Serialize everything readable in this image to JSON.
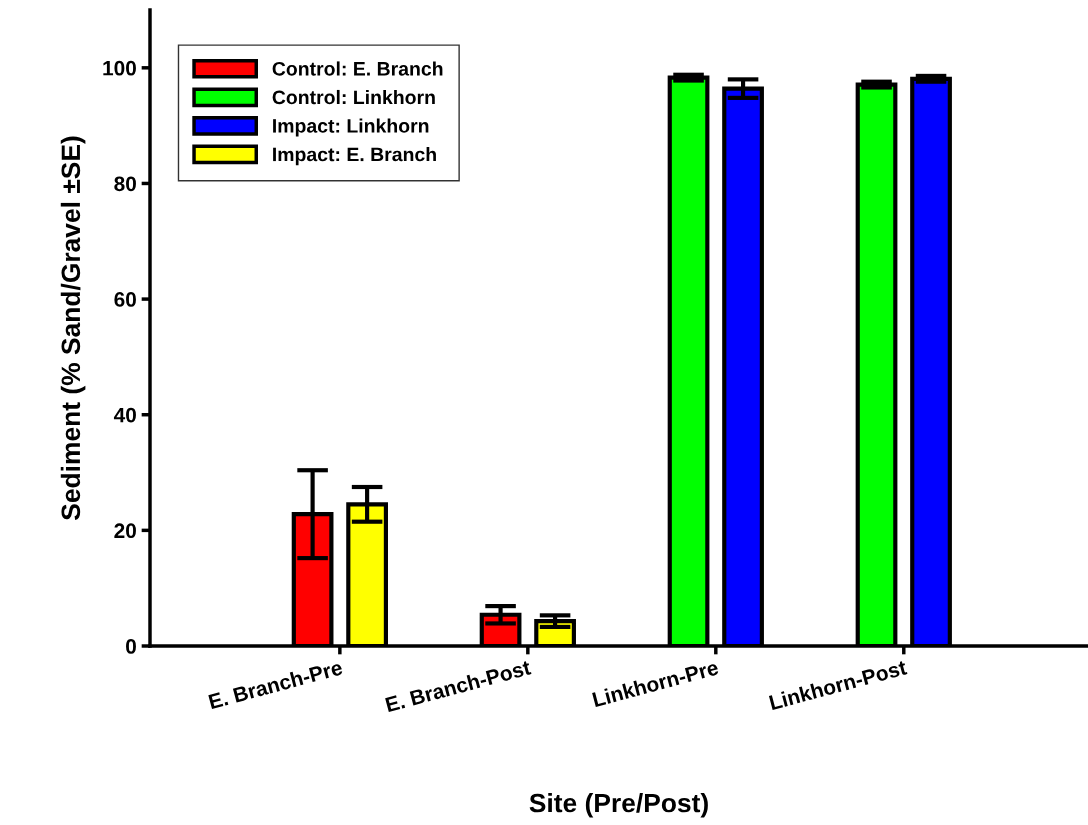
{
  "chart_data": {
    "type": "bar",
    "xlabel": "Site (Pre/Post)",
    "ylabel": "Sediment (% Sand/Gravel ±SE)",
    "categories": [
      "E. Branch-Pre",
      "E. Branch-Post",
      "Linkhorn-Pre",
      "Linkhorn-Post"
    ],
    "series": [
      {
        "name": "Control: E. Branch",
        "color": "#ff0000",
        "values": [
          22.8,
          5.4,
          null,
          null
        ],
        "errors": [
          7.6,
          1.5,
          null,
          null
        ]
      },
      {
        "name": "Control: Linkhorn",
        "color": "#00ff00",
        "values": [
          null,
          null,
          98.3,
          97.1
        ],
        "errors": [
          null,
          null,
          0.5,
          0.5
        ]
      },
      {
        "name": "Impact: Linkhorn",
        "color": "#0000ff",
        "values": [
          null,
          null,
          96.4,
          98.1
        ],
        "errors": [
          null,
          null,
          1.6,
          0.5
        ]
      },
      {
        "name": "Impact: E. Branch",
        "color": "#ffff00",
        "values": [
          24.5,
          4.3,
          null,
          null
        ],
        "errors": [
          3.0,
          1.0,
          null,
          null
        ]
      }
    ],
    "ylim": [
      0,
      110
    ],
    "yticks": [
      0,
      20,
      40,
      60,
      80,
      100
    ],
    "grid": false,
    "legend": "top left"
  }
}
